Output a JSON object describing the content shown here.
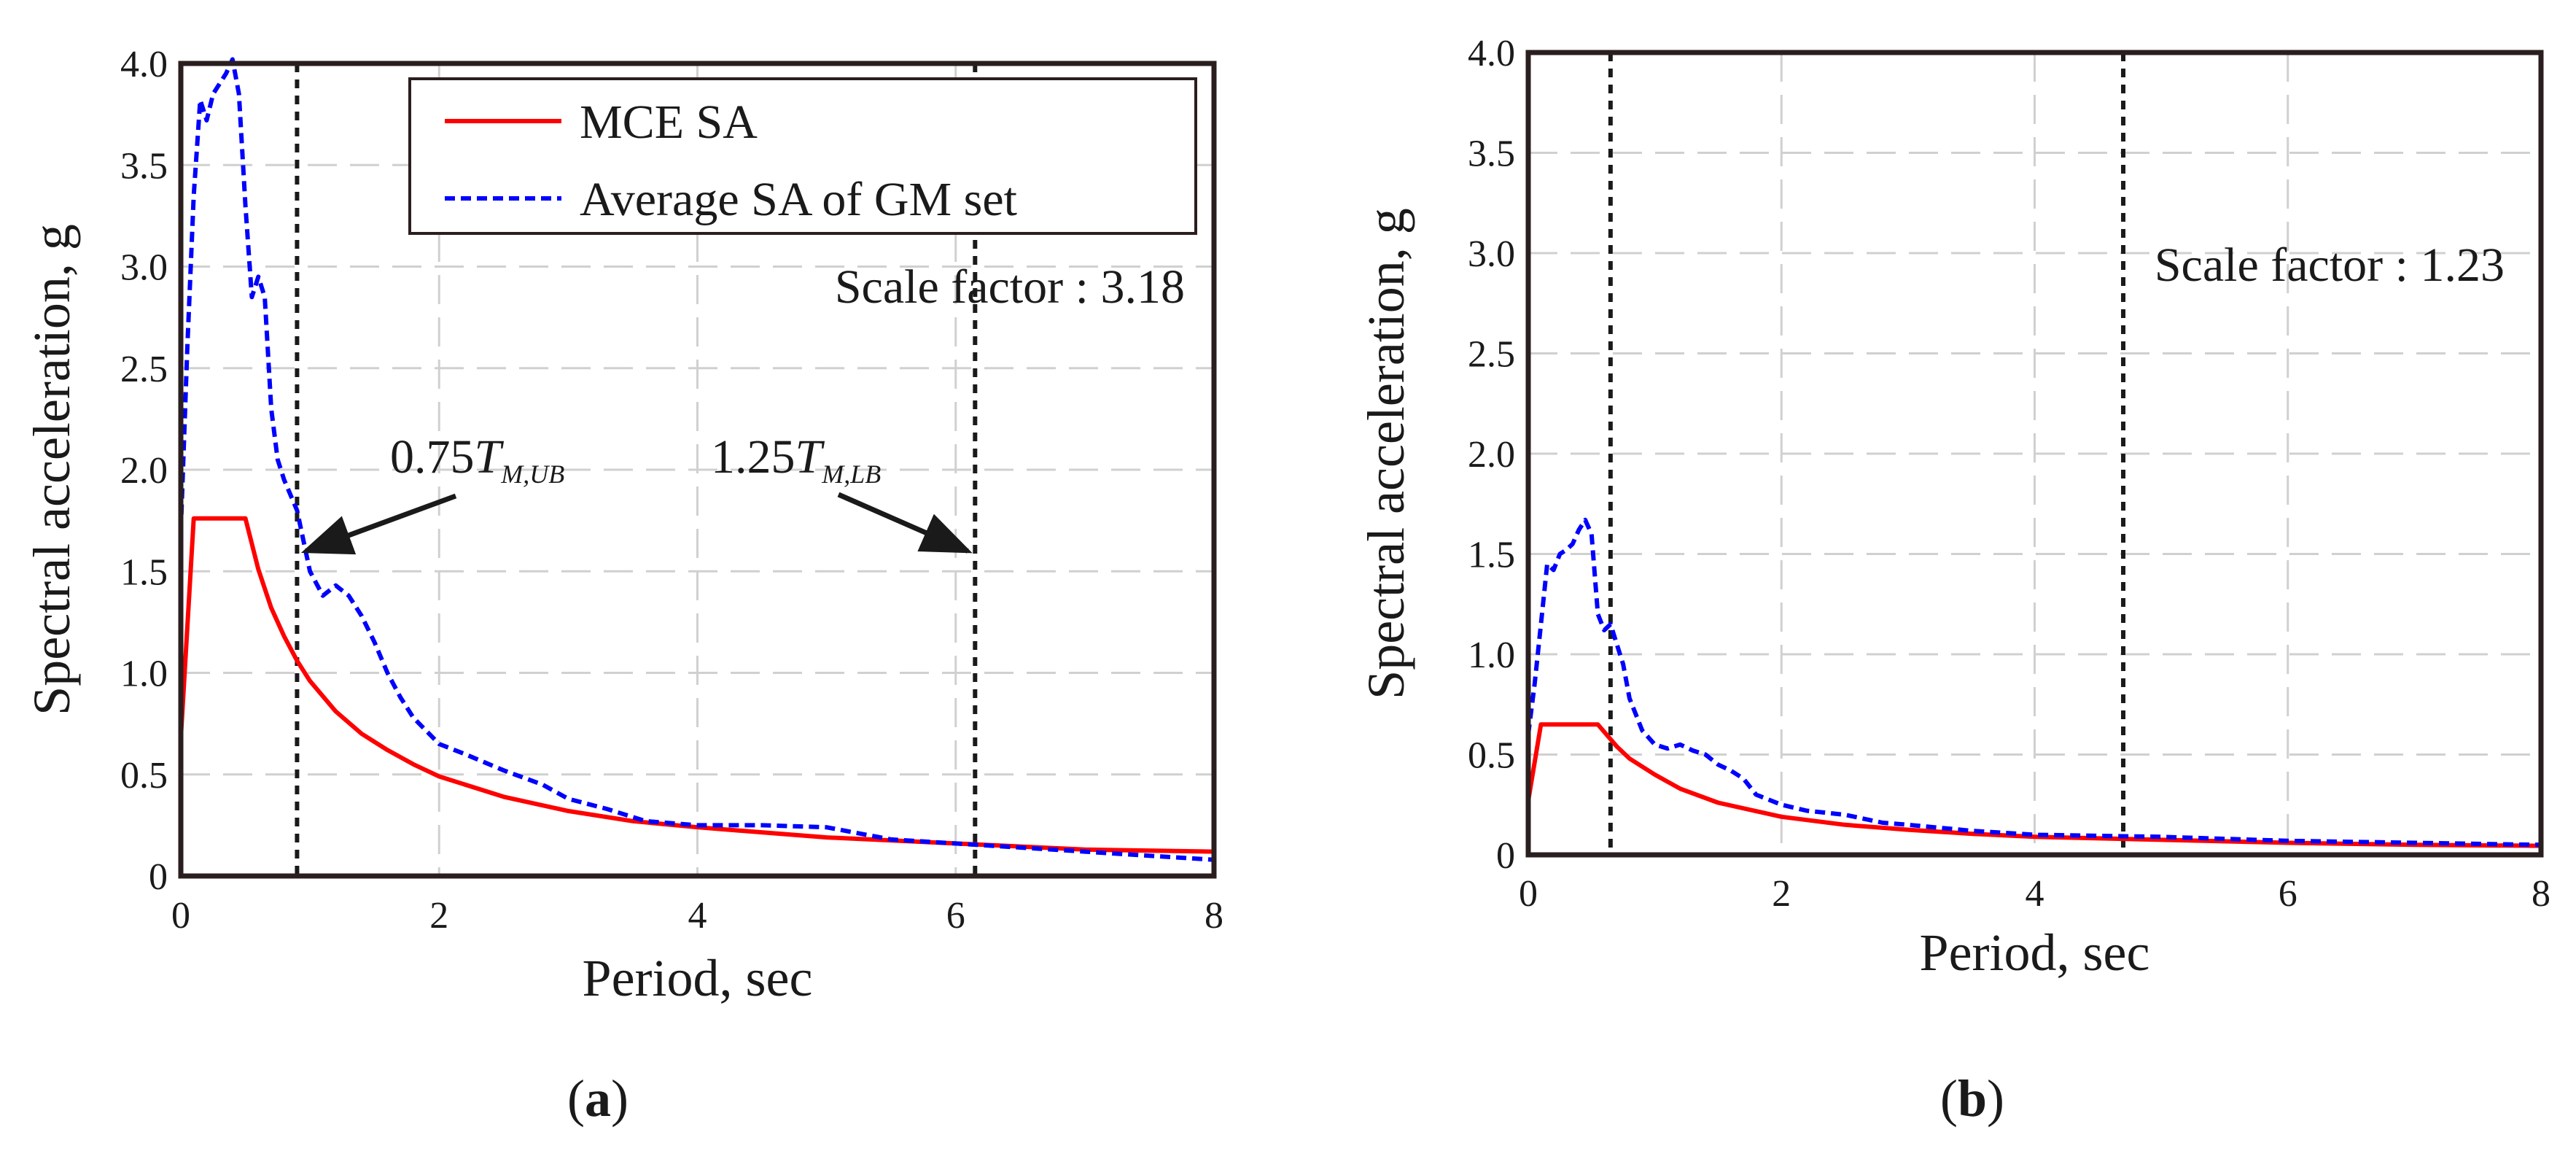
{
  "chart_data": [
    {
      "type": "line",
      "panel": "a",
      "caption_letter": "a",
      "xlabel": "Period, sec",
      "ylabel": "Spectral acceleration, g",
      "xlim": [
        0,
        8
      ],
      "ylim": [
        0,
        4
      ],
      "xticks": [
        0,
        2,
        4,
        6,
        8
      ],
      "xtick_labels": [
        "0",
        "2",
        "4",
        "6",
        "8"
      ],
      "yticks": [
        0,
        0.5,
        1,
        1.5,
        2,
        2.5,
        3,
        3.5,
        4
      ],
      "ytick_labels": [
        "0",
        "0.5",
        "1.0",
        "1.5",
        "2.0",
        "2.5",
        "3.0",
        "3.5",
        "4.0"
      ],
      "grid": true,
      "legend": {
        "placement": "top-right",
        "entries": [
          "MCE SA",
          "Average SA of GM set"
        ]
      },
      "scale_factor_text": "Scale factor : 3.18",
      "vertical_lines": [
        {
          "x": 0.9,
          "label_coef": "0.75",
          "label_T": "T",
          "label_sub": "M,UB"
        },
        {
          "x": 6.15,
          "label_coef": "1.25",
          "label_T": "T",
          "label_sub": "M,LB"
        }
      ],
      "arrow_target_y": 1.7,
      "series": [
        {
          "name": "MCE SA",
          "color": "#ff0000",
          "style": "solid",
          "x": [
            0,
            0.1,
            0.5,
            0.6,
            0.7,
            0.8,
            0.9,
            1.0,
            1.2,
            1.4,
            1.6,
            1.8,
            2.0,
            2.5,
            3.0,
            3.5,
            4.0,
            5.0,
            6.0,
            7.0,
            8.0
          ],
          "y": [
            0.68,
            1.76,
            1.76,
            1.51,
            1.32,
            1.18,
            1.06,
            0.96,
            0.81,
            0.7,
            0.62,
            0.55,
            0.49,
            0.39,
            0.32,
            0.27,
            0.24,
            0.19,
            0.16,
            0.13,
            0.12
          ]
        },
        {
          "name": "Average SA of GM set",
          "color": "#0000ff",
          "style": "dashed",
          "x": [
            0,
            0.05,
            0.1,
            0.15,
            0.2,
            0.25,
            0.3,
            0.35,
            0.4,
            0.45,
            0.5,
            0.55,
            0.6,
            0.65,
            0.7,
            0.75,
            0.8,
            0.9,
            1.0,
            1.1,
            1.2,
            1.3,
            1.4,
            1.5,
            1.6,
            1.7,
            1.8,
            2.0,
            2.2,
            2.5,
            2.8,
            3.0,
            3.3,
            3.6,
            4.0,
            4.5,
            5.0,
            5.5,
            6.0,
            6.5,
            7.0,
            7.5,
            8.0
          ],
          "y": [
            1.7,
            2.6,
            3.35,
            3.82,
            3.72,
            3.85,
            3.9,
            3.95,
            4.02,
            3.85,
            3.3,
            2.85,
            2.95,
            2.85,
            2.3,
            2.05,
            1.95,
            1.8,
            1.5,
            1.38,
            1.43,
            1.38,
            1.28,
            1.15,
            1.0,
            0.88,
            0.78,
            0.65,
            0.6,
            0.52,
            0.45,
            0.38,
            0.33,
            0.27,
            0.25,
            0.25,
            0.24,
            0.18,
            0.16,
            0.14,
            0.12,
            0.1,
            0.08
          ]
        }
      ]
    },
    {
      "type": "line",
      "panel": "b",
      "caption_letter": "b",
      "xlabel": "Period, sec",
      "ylabel": "Spectral acceleration, g",
      "xlim": [
        0,
        8
      ],
      "ylim": [
        0,
        4
      ],
      "xticks": [
        0,
        2,
        4,
        6,
        8
      ],
      "xtick_labels": [
        "0",
        "2",
        "4",
        "6",
        "8"
      ],
      "yticks": [
        0,
        0.5,
        1,
        1.5,
        2,
        2.5,
        3,
        3.5,
        4
      ],
      "ytick_labels": [
        "0",
        "0.5",
        "1.0",
        "1.5",
        "2.0",
        "2.5",
        "3.0",
        "3.5",
        "4.0"
      ],
      "grid": true,
      "scale_factor_text": "Scale factor : 1.23",
      "vertical_lines": [
        {
          "x": 0.65
        },
        {
          "x": 4.7
        }
      ],
      "series": [
        {
          "name": "MCE SA",
          "color": "#ff0000",
          "style": "solid",
          "x": [
            0,
            0.1,
            0.55,
            0.7,
            0.8,
            1.0,
            1.2,
            1.5,
            2.0,
            2.5,
            3.0,
            3.5,
            4.0,
            5.0,
            6.0,
            7.0,
            8.0
          ],
          "y": [
            0.27,
            0.65,
            0.65,
            0.54,
            0.48,
            0.4,
            0.33,
            0.26,
            0.19,
            0.15,
            0.125,
            0.105,
            0.09,
            0.075,
            0.06,
            0.05,
            0.045
          ]
        },
        {
          "name": "Average SA of GM set",
          "color": "#0000ff",
          "style": "dashed",
          "x": [
            0,
            0.05,
            0.1,
            0.15,
            0.2,
            0.25,
            0.3,
            0.35,
            0.4,
            0.45,
            0.5,
            0.55,
            0.6,
            0.65,
            0.7,
            0.75,
            0.8,
            0.9,
            1.0,
            1.1,
            1.2,
            1.3,
            1.4,
            1.5,
            1.6,
            1.7,
            1.8,
            2.0,
            2.2,
            2.5,
            2.8,
            3.0,
            3.5,
            4.0,
            5.0,
            6.0,
            7.0,
            8.0
          ],
          "y": [
            0.6,
            0.85,
            1.15,
            1.45,
            1.42,
            1.5,
            1.52,
            1.55,
            1.62,
            1.67,
            1.6,
            1.2,
            1.12,
            1.15,
            1.05,
            0.95,
            0.78,
            0.62,
            0.55,
            0.53,
            0.55,
            0.52,
            0.5,
            0.45,
            0.42,
            0.38,
            0.3,
            0.25,
            0.22,
            0.2,
            0.16,
            0.15,
            0.12,
            0.1,
            0.09,
            0.07,
            0.06,
            0.05
          ]
        }
      ]
    }
  ]
}
